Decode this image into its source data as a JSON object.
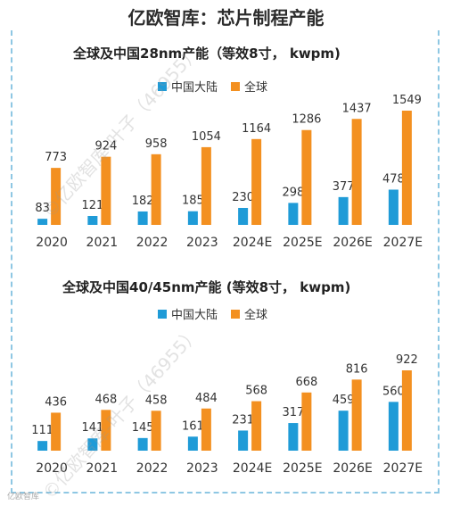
{
  "page": {
    "title": "亿欧智库：芯片制程产能",
    "watermark": "©亿欧智库-叶子（46955）",
    "logo_text": "亿欧智库"
  },
  "colors": {
    "mainland": "#1f9bd7",
    "global": "#f39020"
  },
  "chart_data": [
    {
      "type": "bar",
      "title": "全球及中国28nm产能（等效8寸， kwpm)",
      "categories": [
        "2020",
        "2021",
        "2022",
        "2023",
        "2024E",
        "2025E",
        "2026E",
        "2027E"
      ],
      "series": [
        {
          "name": "中国大陆",
          "values": [
            83,
            121,
            182,
            185,
            230,
            298,
            377,
            478
          ]
        },
        {
          "name": "全球",
          "values": [
            773,
            924,
            958,
            1054,
            1164,
            1286,
            1437,
            1549
          ]
        }
      ],
      "legend": "top-center",
      "grid": false
    },
    {
      "type": "bar",
      "title": "全球及中国40/45nm产能    (等效8寸， kwpm)",
      "categories": [
        "2020",
        "2021",
        "2022",
        "2023",
        "2024E",
        "2025E",
        "2026E",
        "2027E"
      ],
      "series": [
        {
          "name": "中国大陆",
          "values": [
            111,
            141,
            145,
            161,
            231,
            317,
            459,
            560
          ]
        },
        {
          "name": "全球",
          "values": [
            436,
            468,
            458,
            484,
            568,
            668,
            816,
            922
          ]
        }
      ],
      "legend": "top-center",
      "grid": false
    }
  ]
}
